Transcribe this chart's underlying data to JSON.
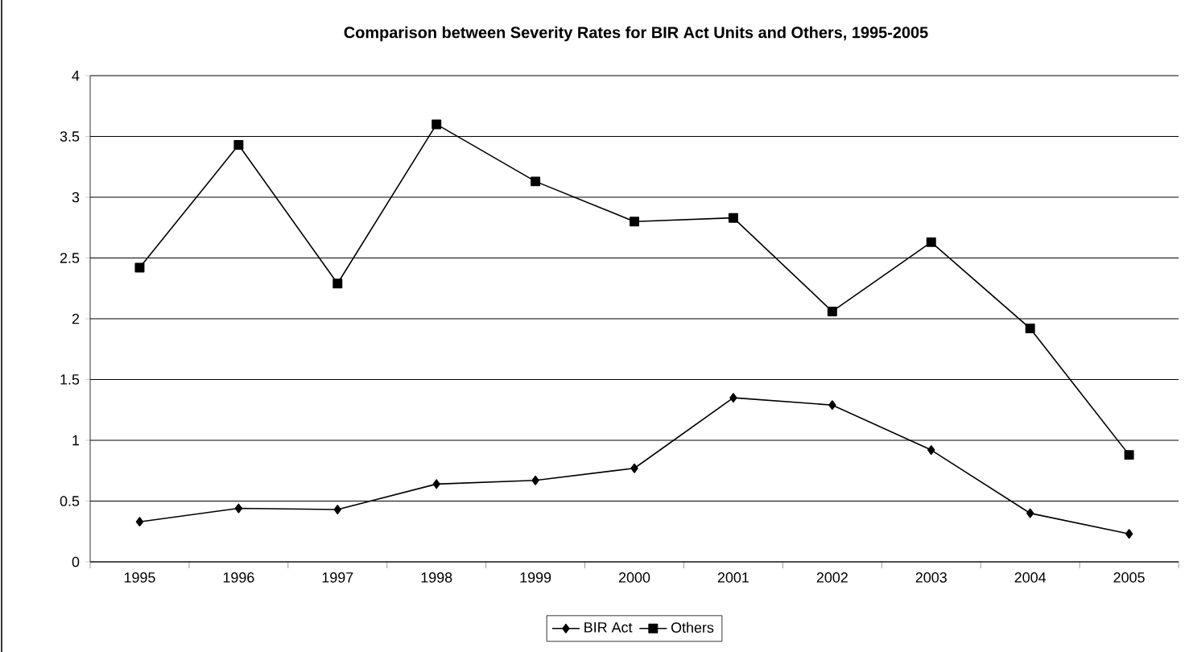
{
  "chart_data": {
    "type": "line",
    "title": "Comparison between Severity Rates for BIR Act Units and Others, 1995-2005",
    "categories": [
      "1995",
      "1996",
      "1997",
      "1998",
      "1999",
      "2000",
      "2001",
      "2002",
      "2003",
      "2004",
      "2005"
    ],
    "series": [
      {
        "name": "BIR Act",
        "color": "#000000",
        "marker": "diamond",
        "values": [
          0.33,
          0.44,
          0.43,
          0.64,
          0.67,
          0.77,
          1.35,
          1.29,
          0.92,
          0.4,
          0.23
        ]
      },
      {
        "name": "Others",
        "color": "#000000",
        "marker": "square",
        "values": [
          2.42,
          3.43,
          2.29,
          3.6,
          3.13,
          2.8,
          2.83,
          2.06,
          2.63,
          1.92,
          0.88
        ]
      }
    ],
    "ylim": [
      0,
      4
    ],
    "yticks": [
      0,
      0.5,
      1,
      1.5,
      2,
      2.5,
      3,
      3.5,
      4
    ],
    "grid": "y",
    "legend": "bottom",
    "line_style": "solid"
  }
}
